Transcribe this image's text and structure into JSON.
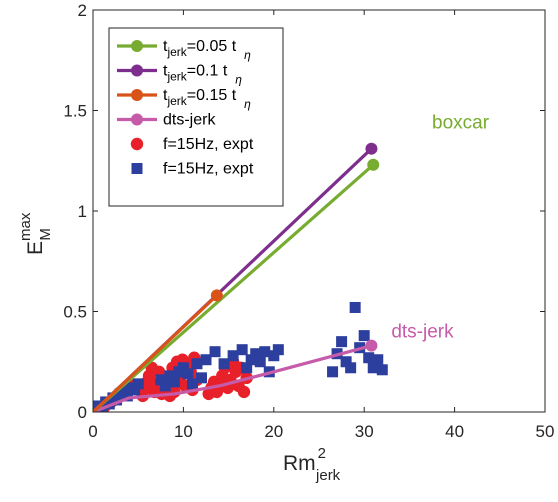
{
  "chart_data": {
    "type": "line",
    "xlabel": {
      "base": "Rm",
      "sub": "jerk",
      "sup": "2"
    },
    "ylabel": {
      "base": "E",
      "sub": "M",
      "sup": "max"
    },
    "xlim": [
      0,
      50
    ],
    "ylim": [
      0,
      2
    ],
    "x_ticks": [
      {
        "value": 0,
        "label": "0"
      },
      {
        "value": 10,
        "label": "10"
      },
      {
        "value": 20,
        "label": "20"
      },
      {
        "value": 30,
        "label": "30"
      },
      {
        "value": 40,
        "label": "40"
      },
      {
        "value": 50,
        "label": "50"
      }
    ],
    "y_ticks": [
      {
        "value": 0,
        "label": "0"
      },
      {
        "value": 0.5,
        "label": "0.5"
      },
      {
        "value": 1,
        "label": "1"
      },
      {
        "value": 1.5,
        "label": "1.5"
      },
      {
        "value": 2,
        "label": "2"
      }
    ],
    "grid": false,
    "legend_position": "top-left",
    "series": [
      {
        "name_main": "t",
        "name_sub": "jerk",
        "name_rest": "=0.05 t",
        "name_sub2": "η",
        "kind": "line-marker",
        "color": "#77AC30",
        "x": [
          0,
          31
        ],
        "y": [
          0,
          1.23
        ]
      },
      {
        "name_main": "t",
        "name_sub": "jerk",
        "name_rest": "=0.1 t",
        "name_sub2": "η",
        "kind": "line-marker",
        "color": "#7E2F8E",
        "x": [
          0,
          30.8
        ],
        "y": [
          0,
          1.31
        ]
      },
      {
        "name_main": "t",
        "name_sub": "jerk",
        "name_rest": "=0.15 t",
        "name_sub2": "η",
        "kind": "line-marker",
        "color": "#D95319",
        "x": [
          0,
          13.7
        ],
        "y": [
          0,
          0.58
        ]
      },
      {
        "name_main": "dts-jerk",
        "name_sub": "",
        "name_rest": "",
        "name_sub2": "",
        "kind": "line-marker",
        "color": "#C65BAA",
        "x": [
          0,
          4,
          9,
          14,
          20,
          30.8
        ],
        "y": [
          0,
          0.07,
          0.09,
          0.13,
          0.2,
          0.33
        ]
      },
      {
        "name_main": "f=15Hz, expt",
        "name_sub": "",
        "name_rest": "",
        "name_sub2": "",
        "kind": "scatter-circle",
        "color": "#E8202A",
        "x": [
          0.5,
          0.8,
          1.2,
          1.6,
          2.0,
          2.3,
          2.7,
          3.0,
          3.3,
          3.6,
          4.0,
          4.3,
          5.5,
          5.8,
          6.0,
          6.2,
          6.5,
          6.8,
          7.0,
          7.3,
          7.6,
          7.9,
          8.2,
          8.5,
          8.8,
          9.0,
          9.3,
          9.6,
          9.9,
          10.2,
          10.5,
          10.8,
          11.0,
          11.2,
          11.5,
          12.8,
          13.1,
          13.4,
          13.7,
          14.0,
          14.3,
          14.6,
          14.9,
          15.2,
          15.5,
          15.8,
          16.1,
          16.4,
          16.7,
          17.0
        ],
        "y": [
          0.01,
          0.02,
          0.02,
          0.04,
          0.05,
          0.06,
          0.08,
          0.09,
          0.1,
          0.11,
          0.12,
          0.13,
          0.08,
          0.12,
          0.15,
          0.18,
          0.22,
          0.1,
          0.14,
          0.2,
          0.09,
          0.17,
          0.12,
          0.08,
          0.22,
          0.1,
          0.25,
          0.15,
          0.26,
          0.13,
          0.24,
          0.2,
          0.11,
          0.27,
          0.16,
          0.09,
          0.12,
          0.15,
          0.1,
          0.14,
          0.18,
          0.22,
          0.12,
          0.16,
          0.25,
          0.2,
          0.13,
          0.22,
          0.1,
          0.17
        ]
      },
      {
        "name_main": "f=15Hz, expt",
        "name_sub": "",
        "name_rest": "",
        "name_sub2": "",
        "kind": "scatter-square",
        "color": "#2C3E9E",
        "x": [
          0.3,
          0.6,
          1.0,
          1.4,
          1.8,
          2.2,
          2.6,
          3.0,
          3.4,
          3.8,
          4.2,
          4.6,
          5.0,
          7.5,
          8.0,
          8.5,
          9.0,
          9.5,
          10.0,
          10.5,
          11.0,
          11.5,
          12.0,
          12.5,
          13.5,
          14.5,
          15.5,
          16.5,
          17.0,
          17.5,
          18.0,
          18.5,
          19.0,
          19.5,
          20.0,
          20.5,
          26.5,
          27.0,
          27.5,
          28.0,
          28.5,
          29.0,
          29.5,
          30.0,
          30.5,
          31.0,
          31.5,
          32.0
        ],
        "y": [
          0.01,
          0.03,
          0.02,
          0.05,
          0.04,
          0.07,
          0.06,
          0.09,
          0.1,
          0.08,
          0.12,
          0.11,
          0.14,
          0.16,
          0.13,
          0.18,
          0.15,
          0.2,
          0.22,
          0.19,
          0.14,
          0.24,
          0.17,
          0.26,
          0.3,
          0.24,
          0.28,
          0.31,
          0.22,
          0.26,
          0.29,
          0.25,
          0.3,
          0.2,
          0.28,
          0.31,
          0.2,
          0.29,
          0.35,
          0.25,
          0.22,
          0.52,
          0.32,
          0.38,
          0.27,
          0.22,
          0.26,
          0.21
        ]
      }
    ],
    "annotations": [
      {
        "text": "boxcar",
        "x": 37.5,
        "y": 1.41,
        "color": "#77AC30"
      },
      {
        "text": "dts-jerk",
        "x": 33,
        "y": 0.37,
        "color": "#C65BAA"
      }
    ]
  }
}
